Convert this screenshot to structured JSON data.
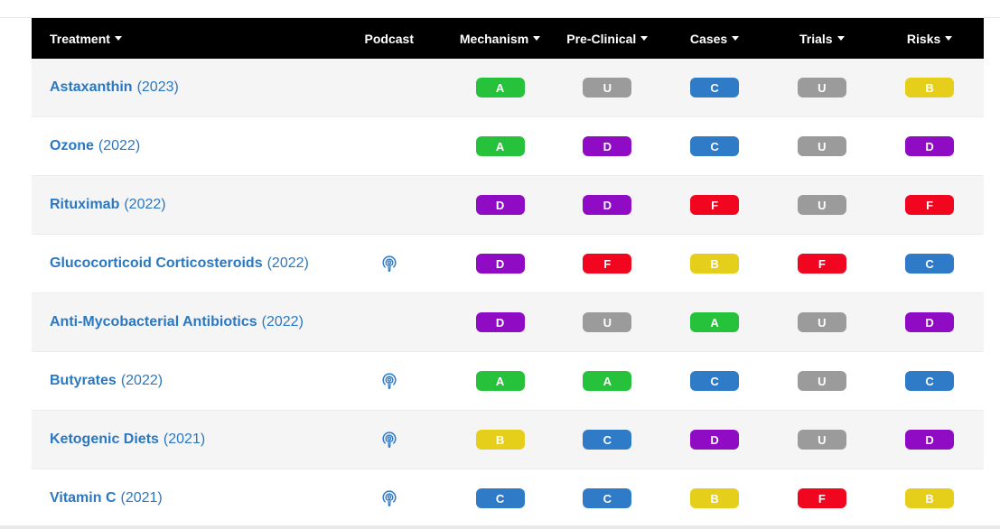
{
  "header": {
    "treatment": "Treatment",
    "podcast": "Podcast",
    "mechanism": "Mechanism",
    "preclinical": "Pre-Clinical",
    "cases": "Cases",
    "trials": "Trials",
    "risks": "Risks"
  },
  "grade_colors": {
    "A": "#27c23b",
    "B": "#e6cf1b",
    "C": "#2f7bc8",
    "D": "#8f0cc4",
    "F": "#f2061f",
    "U": "#9b9b9b"
  },
  "rows": [
    {
      "name": "Astaxanthin",
      "year": "(2023)",
      "podcast": false,
      "mechanism": "A",
      "preclinical": "U",
      "cases": "C",
      "trials": "U",
      "risks": "B"
    },
    {
      "name": "Ozone",
      "year": "(2022)",
      "podcast": false,
      "mechanism": "A",
      "preclinical": "D",
      "cases": "C",
      "trials": "U",
      "risks": "D"
    },
    {
      "name": "Rituximab",
      "year": "(2022)",
      "podcast": false,
      "mechanism": "D",
      "preclinical": "D",
      "cases": "F",
      "trials": "U",
      "risks": "F"
    },
    {
      "name": "Glucocorticoid Corticosteroids",
      "year": "(2022)",
      "podcast": true,
      "mechanism": "D",
      "preclinical": "F",
      "cases": "B",
      "trials": "F",
      "risks": "C"
    },
    {
      "name": "Anti-Mycobacterial Antibiotics",
      "year": "(2022)",
      "podcast": false,
      "mechanism": "D",
      "preclinical": "U",
      "cases": "A",
      "trials": "U",
      "risks": "D"
    },
    {
      "name": "Butyrates",
      "year": "(2022)",
      "podcast": true,
      "mechanism": "A",
      "preclinical": "A",
      "cases": "C",
      "trials": "U",
      "risks": "C"
    },
    {
      "name": "Ketogenic Diets",
      "year": "(2021)",
      "podcast": true,
      "mechanism": "B",
      "preclinical": "C",
      "cases": "D",
      "trials": "U",
      "risks": "D"
    },
    {
      "name": "Vitamin C",
      "year": "(2021)",
      "podcast": true,
      "mechanism": "C",
      "preclinical": "C",
      "cases": "B",
      "trials": "F",
      "risks": "B"
    }
  ]
}
